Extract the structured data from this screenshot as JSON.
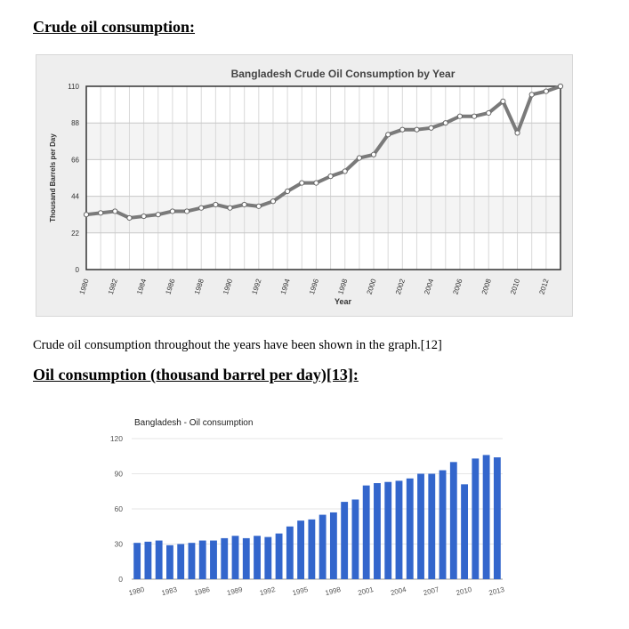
{
  "headings": {
    "crude": "Crude oil consumption:",
    "oil": "Oil consumption (thousand barrel per day)[13]:"
  },
  "paragraph": "Crude oil consumption throughout the years have been shown in the graph.[12]",
  "chart_data": [
    {
      "type": "line",
      "title": "Bangladesh Crude Oil Consumption by Year",
      "xlabel": "Year",
      "ylabel": "Thousand Barrels per Day",
      "xlim": [
        1980,
        2013
      ],
      "ylim": [
        0,
        110
      ],
      "yticks": [
        0,
        22,
        44,
        66,
        88,
        110
      ],
      "xticks": [
        "1980",
        "1982",
        "1984",
        "1986",
        "1988",
        "1990",
        "1992",
        "1994",
        "1996",
        "1998",
        "2000",
        "2002",
        "2004",
        "2006",
        "2008",
        "2010",
        "2012"
      ],
      "grid": true,
      "legend": "none",
      "colors": {
        "line": "#7a7a7a",
        "marker_fill": "#ffffff",
        "border": "#333333",
        "frame": "#d8d8d8"
      },
      "x": [
        1980,
        1981,
        1982,
        1983,
        1984,
        1985,
        1986,
        1987,
        1988,
        1989,
        1990,
        1991,
        1992,
        1993,
        1994,
        1995,
        1996,
        1997,
        1998,
        1999,
        2000,
        2001,
        2002,
        2003,
        2004,
        2005,
        2006,
        2007,
        2008,
        2009,
        2010,
        2011,
        2012,
        2013
      ],
      "values": [
        33,
        34,
        35,
        31,
        32,
        33,
        35,
        35,
        37,
        39,
        37,
        39,
        38,
        41,
        47,
        52,
        52,
        56,
        59,
        67,
        69,
        81,
        84,
        84,
        85,
        88,
        92,
        92,
        94,
        101,
        82,
        105,
        107,
        110
      ]
    },
    {
      "type": "bar",
      "title": "Bangladesh - Oil consumption",
      "xlabel": "",
      "ylabel": "",
      "ylim": [
        0,
        120
      ],
      "yticks": [
        0,
        30,
        60,
        90,
        120
      ],
      "xticks": [
        "1980",
        "1983",
        "1986",
        "1989",
        "1992",
        "1995",
        "1998",
        "2001",
        "2004",
        "2007",
        "2010",
        "2013"
      ],
      "grid": true,
      "legend": "none",
      "colors": {
        "bar": "#3366cc",
        "grid": "#e6e6e6"
      },
      "categories": [
        "1980",
        "1981",
        "1982",
        "1983",
        "1984",
        "1985",
        "1986",
        "1987",
        "1988",
        "1989",
        "1990",
        "1991",
        "1992",
        "1993",
        "1994",
        "1995",
        "1996",
        "1997",
        "1998",
        "1999",
        "2000",
        "2001",
        "2002",
        "2003",
        "2004",
        "2005",
        "2006",
        "2007",
        "2008",
        "2009",
        "2010",
        "2011",
        "2012",
        "2013"
      ],
      "values": [
        31,
        32,
        33,
        29,
        30,
        31,
        33,
        33,
        35,
        37,
        35,
        37,
        36,
        39,
        45,
        50,
        51,
        55,
        57,
        66,
        68,
        80,
        82,
        83,
        84,
        86,
        90,
        90,
        93,
        100,
        81,
        103,
        106,
        104
      ]
    }
  ]
}
